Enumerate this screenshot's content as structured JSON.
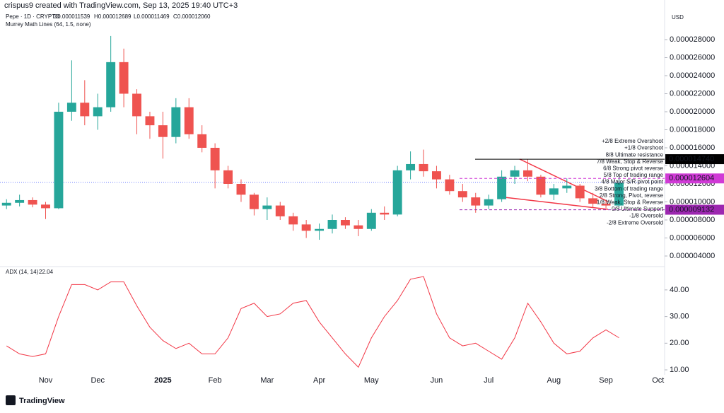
{
  "header": {
    "credit": "crispus9 created with TradingView.com, Sep 13, 2025 19:40 UTC+3",
    "symbol": "Pepe · 1D · CRYPTO",
    "ohlc": [
      "O0.000011539",
      "H0.000012689",
      "L0.000011469",
      "C0.000012060"
    ],
    "indicator": "Murrey Math Lines (64, 1.5, none)",
    "currency": "USD",
    "logo": "TradingView"
  },
  "chart_data": [
    {
      "type": "candlestick",
      "up_color": "#26a69a",
      "down_color": "#ef5350",
      "categories": [
        null,
        null,
        null,
        "Nov",
        null,
        null,
        null,
        "Dec",
        null,
        null,
        null,
        null,
        "2025",
        null,
        null,
        null,
        "Feb",
        null,
        null,
        null,
        "Mar",
        null,
        null,
        null,
        "Apr",
        null,
        null,
        null,
        "May",
        null,
        null,
        null,
        null,
        "Jun",
        null,
        null,
        null,
        "Jul",
        null,
        null,
        null,
        null,
        "Aug",
        null,
        null,
        null,
        "Sep",
        null,
        null,
        null,
        "Oct"
      ],
      "open": [
        9.6e-06,
        9.9e-06,
        1.02e-05,
        9.7e-06,
        9.3e-06,
        2e-05,
        2.1e-05,
        1.95e-05,
        2.05e-05,
        2.55e-05,
        2.2e-05,
        1.95e-05,
        1.85e-05,
        1.72e-05,
        2.05e-05,
        1.75e-05,
        1.6e-05,
        1.35e-05,
        1.2e-05,
        1.08e-05,
        9.2e-06,
        9.6e-06,
        8.4e-06,
        7.5e-06,
        6.8e-06,
        7e-06,
        8e-06,
        7.4e-06,
        7e-06,
        8.8e-06,
        8.6e-06,
        1.35e-05,
        1.42e-05,
        1.34e-05,
        1.25e-05,
        1.12e-05,
        1.05e-05,
        9.6e-06,
        1.03e-05,
        1.28e-05,
        1.35e-05,
        1.28e-05,
        1.08e-05,
        1.15e-05,
        1.18e-05,
        1.04e-05,
        9.8e-06,
        9.6e-06,
        null,
        null,
        null
      ],
      "high": [
        1.03e-05,
        1.08e-05,
        1.05e-05,
        1e-05,
        2.1e-05,
        2.57e-05,
        2.35e-05,
        2.2e-05,
        2.84e-05,
        2.7e-05,
        2.25e-05,
        2e-05,
        2e-05,
        2.15e-05,
        2.15e-05,
        1.85e-05,
        1.65e-05,
        1.4e-05,
        1.25e-05,
        1.1e-05,
        1.05e-05,
        1e-05,
        8.8e-06,
        8e-06,
        7.6e-06,
        8.6e-06,
        8.3e-06,
        8e-06,
        9.2e-06,
        9.5e-06,
        1.4e-05,
        1.56e-05,
        1.58e-05,
        1.4e-05,
        1.3e-05,
        1.2e-05,
        1.1e-05,
        1.08e-05,
        1.35e-05,
        1.4e-05,
        1.47e-05,
        1.3e-05,
        1.2e-05,
        1.26e-05,
        1.2e-05,
        1.1e-05,
        1.02e-05,
        1.27e-05,
        null,
        null,
        null
      ],
      "low": [
        9.2e-06,
        9.5e-06,
        9.4e-06,
        8.1e-06,
        9.2e-06,
        1.9e-05,
        1.85e-05,
        1.8e-05,
        2e-05,
        2.05e-05,
        1.75e-05,
        1.7e-05,
        1.48e-05,
        1.65e-05,
        1.7e-05,
        1.55e-05,
        1.15e-05,
        1.15e-05,
        1e-05,
        8.5e-06,
        8e-06,
        8e-06,
        6.8e-06,
        6e-06,
        5.8e-06,
        6.5e-06,
        7e-06,
        6.2e-06,
        6.8e-06,
        8e-06,
        8.4e-06,
        1.25e-05,
        1.28e-05,
        1.15e-05,
        1.08e-05,
        1e-05,
        8.8e-06,
        9.2e-06,
        1e-05,
        1.2e-05,
        1.23e-05,
        1.05e-05,
        1.02e-05,
        1.1e-05,
        1e-05,
        9.4e-06,
        9.3e-06,
        9.4e-06,
        null,
        null,
        null
      ],
      "close": [
        9.9e-06,
        1.02e-05,
        9.7e-06,
        9.3e-06,
        2e-05,
        2.1e-05,
        1.95e-05,
        2.05e-05,
        2.55e-05,
        2.2e-05,
        1.95e-05,
        1.85e-05,
        1.72e-05,
        2.05e-05,
        1.75e-05,
        1.6e-05,
        1.35e-05,
        1.2e-05,
        1.08e-05,
        9.2e-06,
        9.6e-06,
        8.4e-06,
        7.5e-06,
        6.8e-06,
        7e-06,
        8e-06,
        7.4e-06,
        7e-06,
        8.8e-06,
        8.6e-06,
        1.35e-05,
        1.42e-05,
        1.34e-05,
        1.25e-05,
        1.12e-05,
        1.05e-05,
        9.6e-06,
        1.03e-05,
        1.28e-05,
        1.35e-05,
        1.28e-05,
        1.08e-05,
        1.15e-05,
        1.18e-05,
        1.04e-05,
        9.8e-06,
        9.6e-06,
        1.21e-05,
        null,
        null,
        null
      ],
      "ylim": [
        3e-06,
        3.1e-05
      ],
      "yticks": [
        {
          "value": 4e-06,
          "label": "0.000004000"
        },
        {
          "value": 6e-06,
          "label": "0.000006000"
        },
        {
          "value": 8e-06,
          "label": "0.000008000"
        },
        {
          "value": 1e-05,
          "label": "0.000010000"
        },
        {
          "value": 1.2e-05,
          "label": "0.000012000"
        },
        {
          "value": 1.4e-05,
          "label": "0.000014000"
        },
        {
          "value": 1.6e-05,
          "label": "0.000016000"
        },
        {
          "value": 1.8e-05,
          "label": "0.000018000"
        },
        {
          "value": 2e-05,
          "label": "0.000020000"
        },
        {
          "value": 2.2e-05,
          "label": "0.000022000"
        },
        {
          "value": 2.4e-05,
          "label": "0.000024000"
        },
        {
          "value": 2.6e-05,
          "label": "0.000026000"
        },
        {
          "value": 2.8e-05,
          "label": "0.000028000"
        }
      ],
      "price_lines": [
        {
          "value": 1.474e-05,
          "label": "0.000014740",
          "color": "#000000"
        },
        {
          "value": 1.2604e-05,
          "label": "0.000012604",
          "color": "#d03ad6"
        },
        {
          "value": 9.132e-06,
          "label": "0.000009132",
          "color": "#9c27b0"
        }
      ],
      "annotations": [
        {
          "text": "+2/8 Extreme Overshoot",
          "color": "#f23645"
        },
        {
          "text": "+1/8 Overshoot",
          "color": "#f7525f"
        },
        {
          "text": "8/8 Ultimate resistance",
          "color": "#2962ff"
        },
        {
          "text": "7/8 Weak, Stop & Reverse",
          "color": "#ff9800"
        },
        {
          "text": "6/8 Strong pivot reverse",
          "color": "#e040fb"
        },
        {
          "text": "5/8 Top of trading range",
          "color": "#4caf50"
        },
        {
          "text": "4/8 Major S/R pivot point",
          "color": "#2962ff"
        },
        {
          "text": "3/8 Bottom of trading range",
          "color": "#4caf50"
        },
        {
          "text": "2/8 Strong, Pivot, reverse",
          "color": "#e040fb"
        },
        {
          "text": "1/8 Weak, Stop & Reverse",
          "color": "#ff9800"
        },
        {
          "text": "0/8 Ultimate Support",
          "color": "#2962ff"
        },
        {
          "text": "-1/8 Oversold",
          "color": "#f7525f"
        },
        {
          "text": "-2/8 Extreme Oversold",
          "color": "#4caf50"
        }
      ]
    },
    {
      "type": "line",
      "title": "ADX (14, 14)",
      "last_label": "22.04",
      "color": "#f23645",
      "values": [
        19,
        16,
        15,
        16,
        30,
        42,
        42,
        40,
        43,
        43,
        34,
        26,
        21,
        18,
        20,
        16,
        16,
        22,
        33,
        35,
        30,
        31,
        35,
        36,
        28,
        22,
        16,
        11,
        22,
        30,
        36,
        44,
        45,
        31,
        22,
        19,
        20,
        17,
        14,
        22,
        35,
        28,
        20,
        16,
        17,
        22,
        25,
        22.04,
        null,
        null,
        null
      ],
      "ylim": [
        5.5,
        47.4
      ],
      "yticks": [
        {
          "value": 10,
          "label": "10.00"
        },
        {
          "value": 20,
          "label": "20.00"
        },
        {
          "value": 30,
          "label": "30.00"
        },
        {
          "value": 40,
          "label": "40.00"
        }
      ]
    }
  ]
}
